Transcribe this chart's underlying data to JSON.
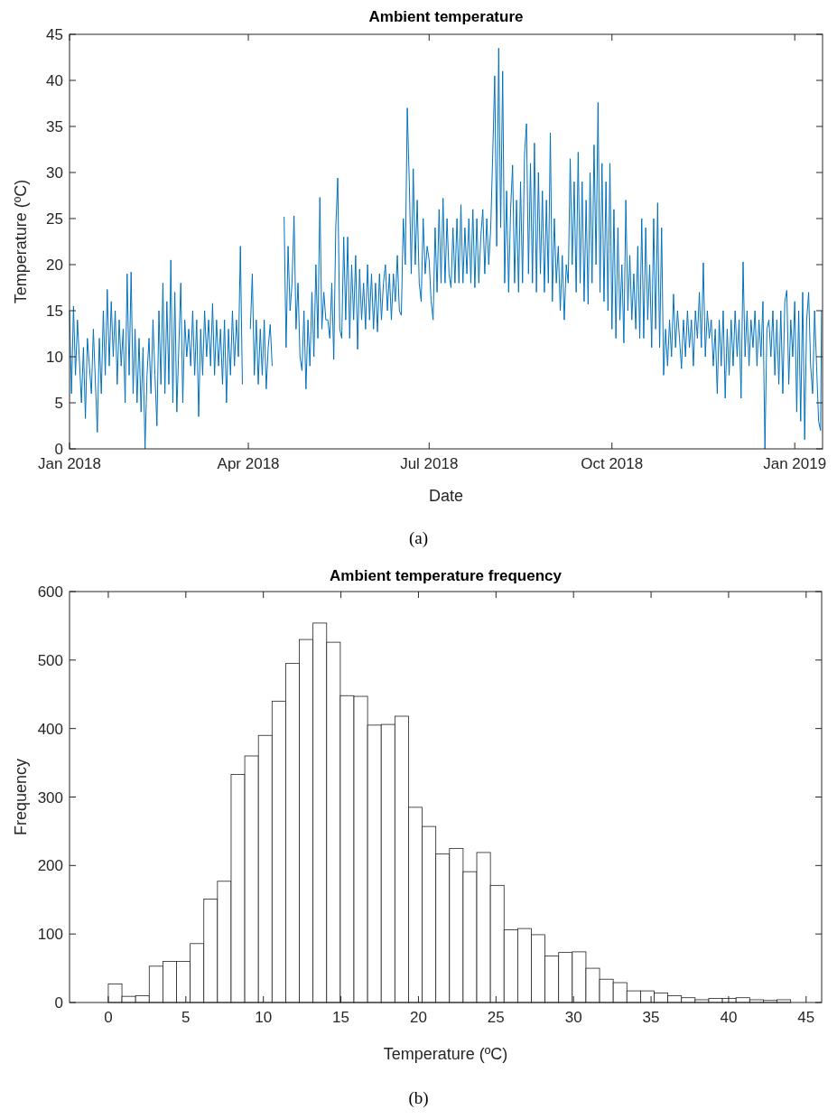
{
  "chart_data": [
    {
      "type": "line",
      "title": "Ambient temperature",
      "xlabel": "Date",
      "ylabel": "Temperature (ºC)",
      "annotations": [
        "(a)"
      ],
      "xlim": [
        "2018-01-01",
        "2019-01-15"
      ],
      "xticks": [
        {
          "value": "2018-01-01",
          "label": "Jan 2018"
        },
        {
          "value": "2018-04-01",
          "label": "Apr 2018"
        },
        {
          "value": "2018-07-01",
          "label": "Jul 2018"
        },
        {
          "value": "2018-10-01",
          "label": "Oct 2018"
        },
        {
          "value": "2019-01-01",
          "label": "Jan 2019"
        }
      ],
      "ylim": [
        0,
        45
      ],
      "yticks": [
        0,
        5,
        10,
        15,
        20,
        25,
        30,
        35,
        40,
        45
      ],
      "marker": "none",
      "line_style": "solid",
      "series": [
        {
          "color": "#0072bd",
          "x": [
            "2018-01-01",
            "2018-01-02",
            "2018-01-03",
            "2018-01-04",
            "2018-01-05",
            "2018-01-07",
            "2018-01-08",
            "2018-01-09",
            "2018-01-10",
            "2018-01-12",
            "2018-01-13",
            "2018-01-15",
            "2018-01-16",
            "2018-01-17",
            "2018-01-18",
            "2018-01-19",
            "2018-01-20",
            "2018-01-21",
            "2018-01-22",
            "2018-01-23",
            "2018-01-24",
            "2018-01-25",
            "2018-01-26",
            "2018-01-27",
            "2018-01-28",
            "2018-01-29",
            "2018-01-30",
            "2018-01-31",
            "2018-02-01",
            "2018-02-02",
            "2018-02-03",
            "2018-02-04",
            "2018-02-05",
            "2018-02-06",
            "2018-02-07",
            "2018-02-08",
            "2018-02-09",
            "2018-02-10",
            "2018-02-11",
            "2018-02-12",
            "2018-02-13",
            "2018-02-14",
            "2018-02-15",
            "2018-02-16",
            "2018-02-17",
            "2018-02-18",
            "2018-02-19",
            "2018-02-20",
            "2018-02-21",
            "2018-02-22",
            "2018-02-23",
            "2018-02-24",
            "2018-02-26",
            "2018-02-27",
            "2018-02-28",
            "2018-03-01",
            "2018-03-02",
            "2018-03-03",
            "2018-03-04",
            "2018-03-05",
            "2018-03-06",
            "2018-03-07",
            "2018-03-08",
            "2018-03-09",
            "2018-03-10",
            "2018-03-11",
            "2018-03-12",
            "2018-03-13",
            "2018-03-14",
            "2018-03-15",
            "2018-03-16",
            "2018-03-17",
            "2018-03-18",
            "2018-03-19",
            "2018-03-20",
            "2018-03-21",
            "2018-03-22",
            "2018-03-23",
            "2018-03-24",
            "2018-03-25",
            "2018-03-26",
            "2018-03-27",
            "2018-03-28",
            "2018-03-29",
            "2018-03-30",
            "2018-04-02",
            "2018-04-03",
            "2018-04-04",
            "2018-04-05",
            "2018-04-06",
            "2018-04-07",
            "2018-04-08",
            "2018-04-09",
            "2018-04-10",
            "2018-04-11",
            "2018-04-12",
            "2018-04-13",
            "2018-04-15",
            "2018-04-19",
            "2018-04-20",
            "2018-04-21",
            "2018-04-22",
            "2018-04-23",
            "2018-04-24",
            "2018-04-25",
            "2018-04-26",
            "2018-04-27",
            "2018-04-28",
            "2018-04-29",
            "2018-04-30",
            "2018-05-01",
            "2018-05-02",
            "2018-05-03",
            "2018-05-04",
            "2018-05-05",
            "2018-05-06",
            "2018-05-07",
            "2018-05-08",
            "2018-05-09",
            "2018-05-10",
            "2018-05-11",
            "2018-05-12",
            "2018-05-13",
            "2018-05-14",
            "2018-05-15",
            "2018-05-16",
            "2018-05-17",
            "2018-05-18",
            "2018-05-19",
            "2018-05-20",
            "2018-05-21",
            "2018-05-22",
            "2018-05-23",
            "2018-05-24",
            "2018-05-25",
            "2018-05-26",
            "2018-05-27",
            "2018-05-28",
            "2018-05-29",
            "2018-05-30",
            "2018-05-31",
            "2018-06-01",
            "2018-06-02",
            "2018-06-03",
            "2018-06-04",
            "2018-06-05",
            "2018-06-06",
            "2018-06-07",
            "2018-06-08",
            "2018-06-09",
            "2018-06-10",
            "2018-06-11",
            "2018-06-12",
            "2018-06-13",
            "2018-06-14",
            "2018-06-15",
            "2018-06-16",
            "2018-06-17",
            "2018-06-18",
            "2018-06-19",
            "2018-06-20",
            "2018-06-21",
            "2018-06-22",
            "2018-06-23",
            "2018-06-24",
            "2018-06-25",
            "2018-06-26",
            "2018-06-27",
            "2018-06-28",
            "2018-06-29",
            "2018-06-30",
            "2018-07-01",
            "2018-07-02",
            "2018-07-03",
            "2018-07-04",
            "2018-07-05",
            "2018-07-06",
            "2018-07-07",
            "2018-07-08",
            "2018-07-09",
            "2018-07-10",
            "2018-07-11",
            "2018-07-12",
            "2018-07-13",
            "2018-07-14",
            "2018-07-15",
            "2018-07-16",
            "2018-07-17",
            "2018-07-18",
            "2018-07-19",
            "2018-07-20",
            "2018-07-21",
            "2018-07-22",
            "2018-07-23",
            "2018-07-24",
            "2018-07-25",
            "2018-07-26",
            "2018-07-27",
            "2018-07-28",
            "2018-07-29",
            "2018-07-30",
            "2018-07-31",
            "2018-08-01",
            "2018-08-02",
            "2018-08-03",
            "2018-08-04",
            "2018-08-05",
            "2018-08-06",
            "2018-08-07",
            "2018-08-08",
            "2018-08-09",
            "2018-08-10",
            "2018-08-11",
            "2018-08-12",
            "2018-08-13",
            "2018-08-14",
            "2018-08-15",
            "2018-08-16",
            "2018-08-17",
            "2018-08-18",
            "2018-08-19",
            "2018-08-20",
            "2018-08-21",
            "2018-08-22",
            "2018-08-23",
            "2018-08-24",
            "2018-08-25",
            "2018-08-26",
            "2018-08-27",
            "2018-08-28",
            "2018-08-29",
            "2018-08-30",
            "2018-08-31",
            "2018-09-01",
            "2018-09-02",
            "2018-09-03",
            "2018-09-04",
            "2018-09-05",
            "2018-09-06",
            "2018-09-07",
            "2018-09-08",
            "2018-09-09",
            "2018-09-10",
            "2018-09-11",
            "2018-09-12",
            "2018-09-13",
            "2018-09-14",
            "2018-09-15",
            "2018-09-16",
            "2018-09-17",
            "2018-09-18",
            "2018-09-19",
            "2018-09-20",
            "2018-09-21",
            "2018-09-22",
            "2018-09-23",
            "2018-09-24",
            "2018-09-25",
            "2018-09-26",
            "2018-09-27",
            "2018-09-28",
            "2018-09-29",
            "2018-09-30",
            "2018-10-01",
            "2018-10-02",
            "2018-10-03",
            "2018-10-04",
            "2018-10-05",
            "2018-10-06",
            "2018-10-07",
            "2018-10-08",
            "2018-10-09",
            "2018-10-10",
            "2018-10-11",
            "2018-10-12",
            "2018-10-13",
            "2018-10-14",
            "2018-10-15",
            "2018-10-16",
            "2018-10-17",
            "2018-10-18",
            "2018-10-19",
            "2018-10-20",
            "2018-10-21",
            "2018-10-22",
            "2018-10-23",
            "2018-10-24",
            "2018-10-25",
            "2018-10-26",
            "2018-10-27",
            "2018-10-28",
            "2018-10-29",
            "2018-10-30",
            "2018-10-31",
            "2018-11-01",
            "2018-11-02",
            "2018-11-03",
            "2018-11-04",
            "2018-11-05",
            "2018-11-06",
            "2018-11-07",
            "2018-11-08",
            "2018-11-09",
            "2018-11-10",
            "2018-11-11",
            "2018-11-12",
            "2018-11-13",
            "2018-11-14",
            "2018-11-15",
            "2018-11-16",
            "2018-11-17",
            "2018-11-18",
            "2018-11-19",
            "2018-11-20",
            "2018-11-21",
            "2018-11-22",
            "2018-11-23",
            "2018-11-24",
            "2018-11-25",
            "2018-11-26",
            "2018-11-27",
            "2018-11-28",
            "2018-11-29",
            "2018-11-30",
            "2018-12-01",
            "2018-12-02",
            "2018-12-03",
            "2018-12-04",
            "2018-12-05",
            "2018-12-06",
            "2018-12-07",
            "2018-12-08",
            "2018-12-09",
            "2018-12-10",
            "2018-12-11",
            "2018-12-12",
            "2018-12-13",
            "2018-12-14",
            "2018-12-15",
            "2018-12-16",
            "2018-12-17",
            "2018-12-18",
            "2018-12-19",
            "2018-12-20",
            "2018-12-21",
            "2018-12-22",
            "2018-12-23",
            "2018-12-24",
            "2018-12-25",
            "2018-12-26",
            "2018-12-27",
            "2018-12-28",
            "2018-12-29",
            "2018-12-30",
            "2018-12-31",
            "2019-01-01",
            "2019-01-02",
            "2019-01-03",
            "2019-01-04",
            "2019-01-05",
            "2019-01-06",
            "2019-01-07",
            "2019-01-08",
            "2019-01-09",
            "2019-01-10",
            "2019-01-11",
            "2019-01-12",
            "2019-01-13",
            "2019-01-14",
            "2019-01-14T12:00"
          ],
          "values": [
            15,
            6,
            15.5,
            8,
            14,
            5,
            11,
            3.3,
            12,
            6,
            13,
            1.8,
            12,
            6,
            15,
            8,
            17.3,
            9,
            16,
            10,
            15,
            7,
            14,
            9,
            13,
            5,
            19,
            8,
            19.2,
            6,
            13,
            5,
            12,
            4,
            11,
            0,
            8,
            12,
            6,
            14,
            8,
            2.5,
            15,
            7,
            18,
            6,
            16,
            7,
            20.5,
            5,
            17,
            4,
            18,
            5,
            14,
            10,
            13,
            9,
            15,
            8,
            14,
            3.5,
            13,
            8,
            15,
            10,
            14,
            9,
            15.8,
            8,
            14,
            9,
            13,
            7,
            14,
            5,
            13,
            8,
            15,
            9,
            14,
            10,
            22,
            7,
            null,
            13,
            19,
            8,
            14,
            7,
            13,
            8,
            14,
            6.5,
            11,
            13.5,
            9,
            null,
            25.2,
            11,
            22,
            15,
            18,
            25.3,
            13,
            18,
            10,
            8.5,
            15,
            6.5,
            14,
            9,
            17,
            10,
            20,
            12,
            27.3,
            13,
            17,
            14,
            14,
            12,
            18,
            9.7,
            24,
            29.4,
            13,
            12,
            23,
            14,
            23,
            12,
            20,
            14,
            21,
            10.8,
            19.5,
            14,
            18,
            13,
            20,
            14,
            19,
            13,
            18,
            12.7,
            19,
            14,
            18,
            20,
            15,
            19,
            14,
            19,
            16,
            21,
            15,
            14.5,
            25,
            20,
            37,
            29,
            19,
            30.4,
            20,
            27,
            18,
            16,
            25,
            19,
            22,
            20.5,
            16,
            14,
            24,
            17,
            26,
            18,
            27.2,
            18,
            25,
            19,
            17.5,
            24,
            18,
            25,
            18,
            26.5,
            18,
            24,
            19,
            25,
            18,
            26,
            17.5,
            25,
            18,
            23,
            26,
            19,
            25,
            20,
            24,
            32,
            40.5,
            22,
            43.5,
            24,
            41,
            18,
            28,
            17,
            26,
            30.8,
            18,
            27,
            17,
            29,
            18,
            32,
            35.3,
            19,
            31,
            18,
            33.2,
            17,
            30,
            19,
            28,
            17,
            27,
            18,
            34.3,
            16,
            25,
            18,
            22,
            15,
            21,
            14,
            20,
            18,
            31.5,
            20,
            29,
            17,
            32.2,
            18,
            29,
            16,
            27,
            15.7,
            30,
            18,
            33,
            20,
            37.6,
            17,
            31,
            16,
            29,
            15,
            31,
            13,
            26,
            12,
            24,
            14,
            20,
            11.5,
            27,
            15,
            21,
            14,
            19,
            13,
            22,
            12,
            25,
            12,
            24,
            14,
            20,
            11,
            25,
            13,
            26.7,
            11,
            24,
            8,
            13,
            9,
            14,
            10,
            16.8,
            11,
            15,
            12,
            8.7,
            14,
            10,
            15,
            11,
            14,
            9,
            15,
            12,
            17,
            11,
            20.2,
            10,
            15,
            12,
            14,
            9,
            13,
            6,
            14,
            9,
            15,
            5.5,
            13,
            8,
            14,
            9,
            15,
            10,
            14,
            5.5,
            20.3,
            10,
            15,
            9,
            14,
            11,
            15,
            9,
            14,
            10,
            16,
            0,
            13,
            14,
            10,
            15,
            8,
            14,
            7,
            15,
            6,
            16,
            17.2,
            7,
            14,
            10,
            16,
            4,
            15,
            3,
            17,
            1,
            14,
            17,
            9,
            6,
            15,
            9,
            3,
            2,
            15
          ]
        }
      ]
    },
    {
      "type": "histogram",
      "title": "Ambient temperature frequency",
      "xlabel": "Temperature (ºC)",
      "ylabel": "Frequency",
      "annotations": [
        "(b)"
      ],
      "xlim": [
        -2.5,
        46
      ],
      "xticks": [
        0,
        5,
        10,
        15,
        20,
        25,
        30,
        35,
        40,
        45
      ],
      "ylim": [
        0,
        600
      ],
      "yticks": [
        0,
        100,
        200,
        300,
        400,
        500,
        600
      ],
      "color": "#ffffff",
      "bins": [
        0,
        0.88,
        1.76,
        2.64,
        3.52,
        4.4,
        5.28,
        6.16,
        7.04,
        7.92,
        8.8,
        9.68,
        10.56,
        11.44,
        12.32,
        13.2,
        14.08,
        14.96,
        15.84,
        16.72,
        17.6,
        18.48,
        19.36,
        20.24,
        21.12,
        22,
        22.88,
        23.76,
        24.64,
        25.52,
        26.4,
        27.28,
        28.16,
        29.04,
        29.92,
        30.8,
        31.68,
        32.56,
        33.44,
        34.32,
        35.2,
        36.08,
        36.96,
        37.84,
        38.72,
        39.6,
        40.48,
        41.36,
        42.24,
        43.12,
        44
      ],
      "values": [
        27,
        9,
        10,
        53,
        60,
        60,
        86,
        151,
        177,
        333,
        360,
        390,
        440,
        495,
        530,
        554,
        526,
        448,
        447,
        405,
        406,
        418,
        285,
        257,
        217,
        225,
        191,
        219,
        171,
        106,
        108,
        99,
        68,
        73,
        74,
        50,
        34,
        29,
        17,
        17,
        14,
        10,
        7,
        4,
        6,
        6,
        7,
        4,
        3,
        4
      ]
    }
  ]
}
